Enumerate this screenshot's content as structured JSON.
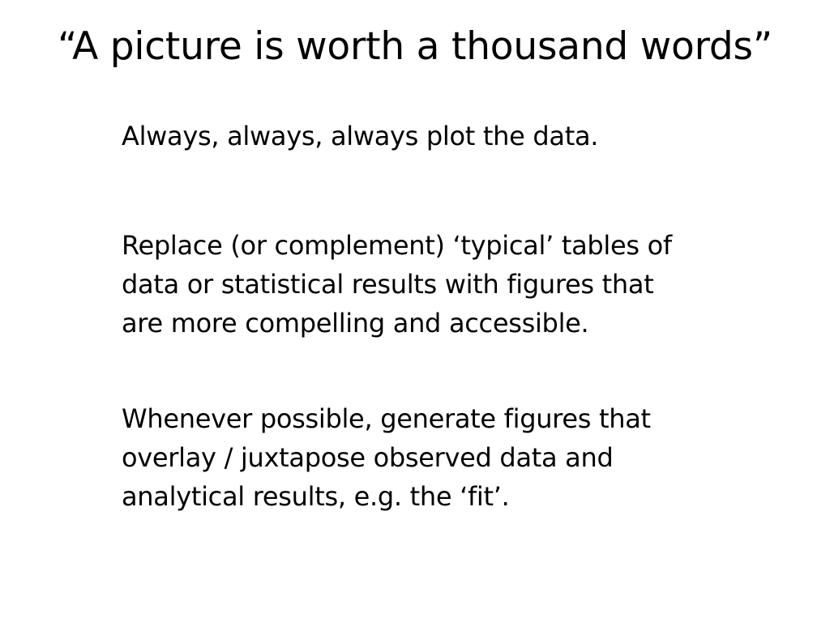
{
  "slide": {
    "title": "“A picture is worth a thousand words”",
    "points": [
      {
        "lines": [
          "Always, always, always plot the data."
        ]
      },
      {
        "lines": [
          "Replace (or complement) ‘typical’ tables of",
          "data or statistical results with figures that",
          "are more compelling and accessible."
        ]
      },
      {
        "lines": [
          "Whenever possible, generate figures that",
          "overlay / juxtapose observed data and",
          "analytical results, e.g. the ‘fit’."
        ]
      }
    ]
  }
}
